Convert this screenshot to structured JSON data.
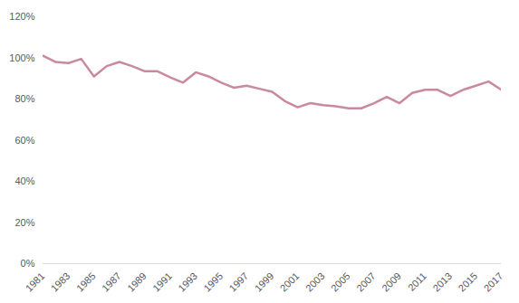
{
  "chart_data": {
    "type": "line",
    "x": [
      1981,
      1982,
      1983,
      1984,
      1985,
      1986,
      1987,
      1988,
      1989,
      1990,
      1991,
      1992,
      1993,
      1994,
      1995,
      1996,
      1997,
      1998,
      1999,
      2000,
      2001,
      2002,
      2003,
      2004,
      2005,
      2006,
      2007,
      2008,
      2009,
      2010,
      2011,
      2012,
      2013,
      2014,
      2015,
      2016,
      2017
    ],
    "values": [
      101,
      98,
      97.5,
      99.5,
      91,
      96,
      98,
      96,
      93.5,
      93.5,
      90.5,
      88,
      93,
      91,
      88,
      85.5,
      86.5,
      85,
      83.5,
      79,
      76,
      78,
      77,
      76.5,
      75.5,
      75.5,
      78,
      81,
      78,
      83,
      84.5,
      84.5,
      81.5,
      84.5,
      86.5,
      88.5,
      84.5
    ],
    "color": "#c98a9d",
    "xlim": [
      1981,
      2017
    ],
    "xticks": [
      1981,
      1983,
      1985,
      1987,
      1989,
      1991,
      1993,
      1995,
      1997,
      1999,
      2001,
      2003,
      2005,
      2007,
      2009,
      2011,
      2013,
      2015,
      2017
    ],
    "ylim": [
      0,
      120
    ],
    "yticks": [
      {
        "value": 0,
        "label": "0%"
      },
      {
        "value": 20,
        "label": "20%"
      },
      {
        "value": 40,
        "label": "40%"
      },
      {
        "value": 60,
        "label": "60%"
      },
      {
        "value": 80,
        "label": "80%"
      },
      {
        "value": 100,
        "label": "100%"
      },
      {
        "value": 120,
        "label": "120%"
      }
    ],
    "grid": false
  }
}
